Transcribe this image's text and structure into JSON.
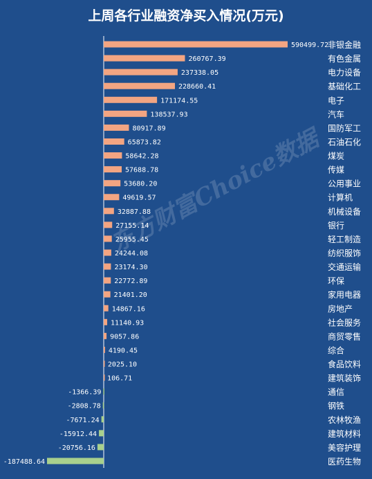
{
  "title": "上周各行业融资净买入情况(万元)",
  "watermark": "东方财富Choice数据",
  "colors": {
    "background": "#1f4e8c",
    "positive": "#f3a582",
    "negative": "#a8d08d",
    "text": "#ffffff",
    "axis": "#ffffff"
  },
  "chart_data": {
    "type": "bar",
    "orientation": "horizontal",
    "title": "上周各行业融资净买入情况(万元)",
    "categories": [
      "非银金融",
      "有色金属",
      "电力设备",
      "基础化工",
      "电子",
      "汽车",
      "国防军工",
      "石油石化",
      "煤炭",
      "传媒",
      "公用事业",
      "计算机",
      "机械设备",
      "银行",
      "轻工制造",
      "纺织服饰",
      "交通运输",
      "环保",
      "家用电器",
      "房地产",
      "社会服务",
      "商贸零售",
      "综合",
      "食品饮料",
      "建筑装饰",
      "通信",
      "钢铁",
      "农林牧渔",
      "建筑材料",
      "美容护理",
      "医药生物"
    ],
    "values": [
      590499.72,
      260767.39,
      237338.05,
      228660.41,
      171174.55,
      138537.93,
      80917.89,
      65873.82,
      58642.28,
      57688.78,
      53680.2,
      49619.57,
      32887.88,
      27155.14,
      25955.45,
      24244.08,
      23174.3,
      22772.89,
      21401.2,
      14867.16,
      11140.93,
      9057.86,
      4190.45,
      2025.1,
      106.71,
      -1366.39,
      -2808.78,
      -7671.24,
      -15912.44,
      -20756.16,
      -187488.64
    ],
    "value_labels": [
      "590499.72",
      "260767.39",
      "237338.05",
      "228660.41",
      "171174.55",
      "138537.93",
      "80917.89",
      "65873.82",
      "58642.28",
      "57688.78",
      "53680.20",
      "49619.57",
      "32887.88",
      "27155.14",
      "25955.45",
      "24244.08",
      "23174.30",
      "22772.89",
      "21401.20",
      "14867.16",
      "11140.93",
      "9057.86",
      "4190.45",
      "2025.10",
      "106.71",
      "-1366.39",
      "-2808.78",
      "-7671.24",
      "-15912.44",
      "-20756.16",
      "-187488.64"
    ],
    "xlim": [
      -187488.64,
      590499.72
    ],
    "grid": false,
    "legend": "none"
  }
}
